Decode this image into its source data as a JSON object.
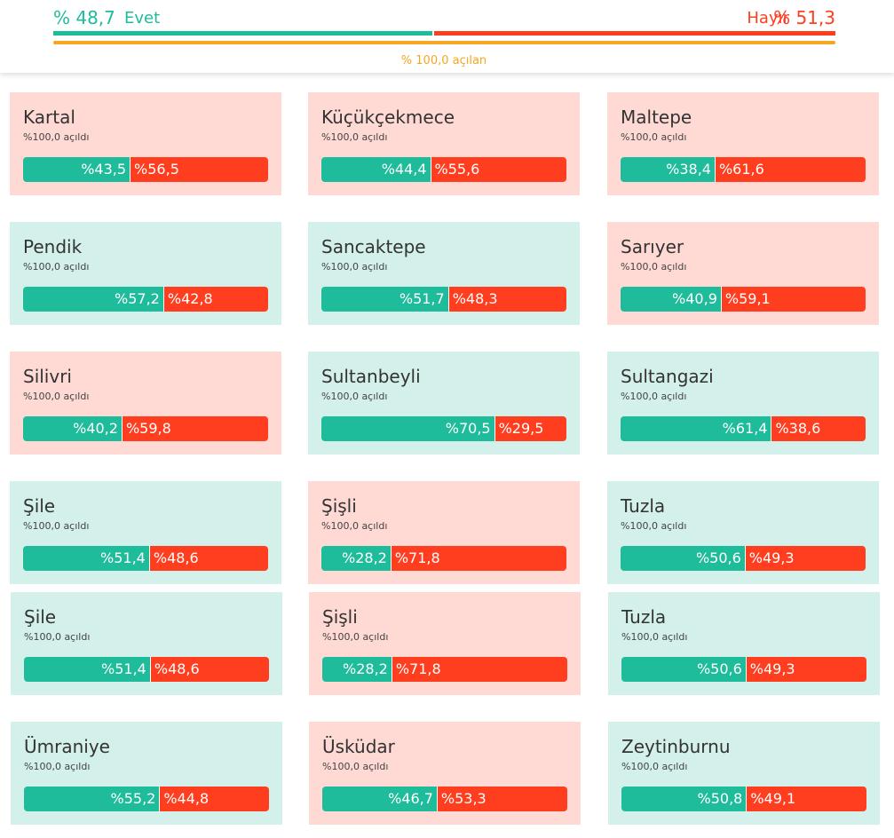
{
  "header": {
    "yes": 48.7,
    "yes_label": "% 48,7",
    "yes_text": "Evet",
    "no_text": "Hayır",
    "no": 51.3,
    "no_label": "% 51,3",
    "opened": "% 100,0 açılan"
  },
  "cards": [
    {
      "name": "Kartal",
      "opened": "%100,0 açıldı",
      "yes": 43.5,
      "yes_label": "%43,5",
      "no": 56.5,
      "no_label": "%56,5"
    },
    {
      "name": "Küçükçekmece",
      "opened": "%100,0 açıldı",
      "yes": 44.4,
      "yes_label": "%44,4",
      "no": 55.6,
      "no_label": "%55,6"
    },
    {
      "name": "Maltepe",
      "opened": "%100,0 açıldı",
      "yes": 38.4,
      "yes_label": "%38,4",
      "no": 61.6,
      "no_label": "%61,6"
    },
    {
      "name": "Pendik",
      "opened": "%100,0 açıldı",
      "yes": 57.2,
      "yes_label": "%57,2",
      "no": 42.8,
      "no_label": "%42,8"
    },
    {
      "name": "Sancaktepe",
      "opened": "%100,0 açıldı",
      "yes": 51.7,
      "yes_label": "%51,7",
      "no": 48.3,
      "no_label": "%48,3"
    },
    {
      "name": "Sarıyer",
      "opened": "%100,0 açıldı",
      "yes": 40.9,
      "yes_label": "%40,9",
      "no": 59.1,
      "no_label": "%59,1"
    },
    {
      "name": "Silivri",
      "opened": "%100,0 açıldı",
      "yes": 40.2,
      "yes_label": "%40,2",
      "no": 59.8,
      "no_label": "%59,8"
    },
    {
      "name": "Sultanbeyli",
      "opened": "%100,0 açıldı",
      "yes": 70.5,
      "yes_label": "%70,5",
      "no": 29.5,
      "no_label": "%29,5"
    },
    {
      "name": "Sultangazi",
      "opened": "%100,0 açıldı",
      "yes": 61.4,
      "yes_label": "%61,4",
      "no": 38.6,
      "no_label": "%38,6"
    },
    {
      "name": "Şile",
      "opened": "%100,0 açıldı",
      "yes": 51.4,
      "yes_label": "%51,4",
      "no": 48.6,
      "no_label": "%48,6"
    },
    {
      "name": "Şişli",
      "opened": "%100,0 açıldı",
      "yes": 28.2,
      "yes_label": "%28,2",
      "no": 71.8,
      "no_label": "%71,8"
    },
    {
      "name": "Tuzla",
      "opened": "%100,0 açıldı",
      "yes": 50.6,
      "yes_label": "%50,6",
      "no": 49.3,
      "no_label": "%49,3"
    },
    {
      "name": "Şile",
      "opened": "%100,0 açıldı",
      "yes": 51.4,
      "yes_label": "%51,4",
      "no": 48.6,
      "no_label": "%48,6"
    },
    {
      "name": "Şişli",
      "opened": "%100,0 açıldı",
      "yes": 28.2,
      "yes_label": "%28,2",
      "no": 71.8,
      "no_label": "%71,8"
    },
    {
      "name": "Tuzla",
      "opened": "%100,0 açıldı",
      "yes": 50.6,
      "yes_label": "%50,6",
      "no": 49.3,
      "no_label": "%49,3"
    },
    {
      "name": "Ümraniye",
      "opened": "%100,0 açıldı",
      "yes": 55.2,
      "yes_label": "%55,2",
      "no": 44.8,
      "no_label": "%44,8"
    },
    {
      "name": "Üsküdar",
      "opened": "%100,0 açıldı",
      "yes": 46.7,
      "yes_label": "%46,7",
      "no": 53.3,
      "no_label": "%53,3"
    },
    {
      "name": "Zeytinburnu",
      "opened": "%100,0 açıldı",
      "yes": 50.8,
      "yes_label": "%50,8",
      "no": 49.1,
      "no_label": "%49,1"
    }
  ]
}
